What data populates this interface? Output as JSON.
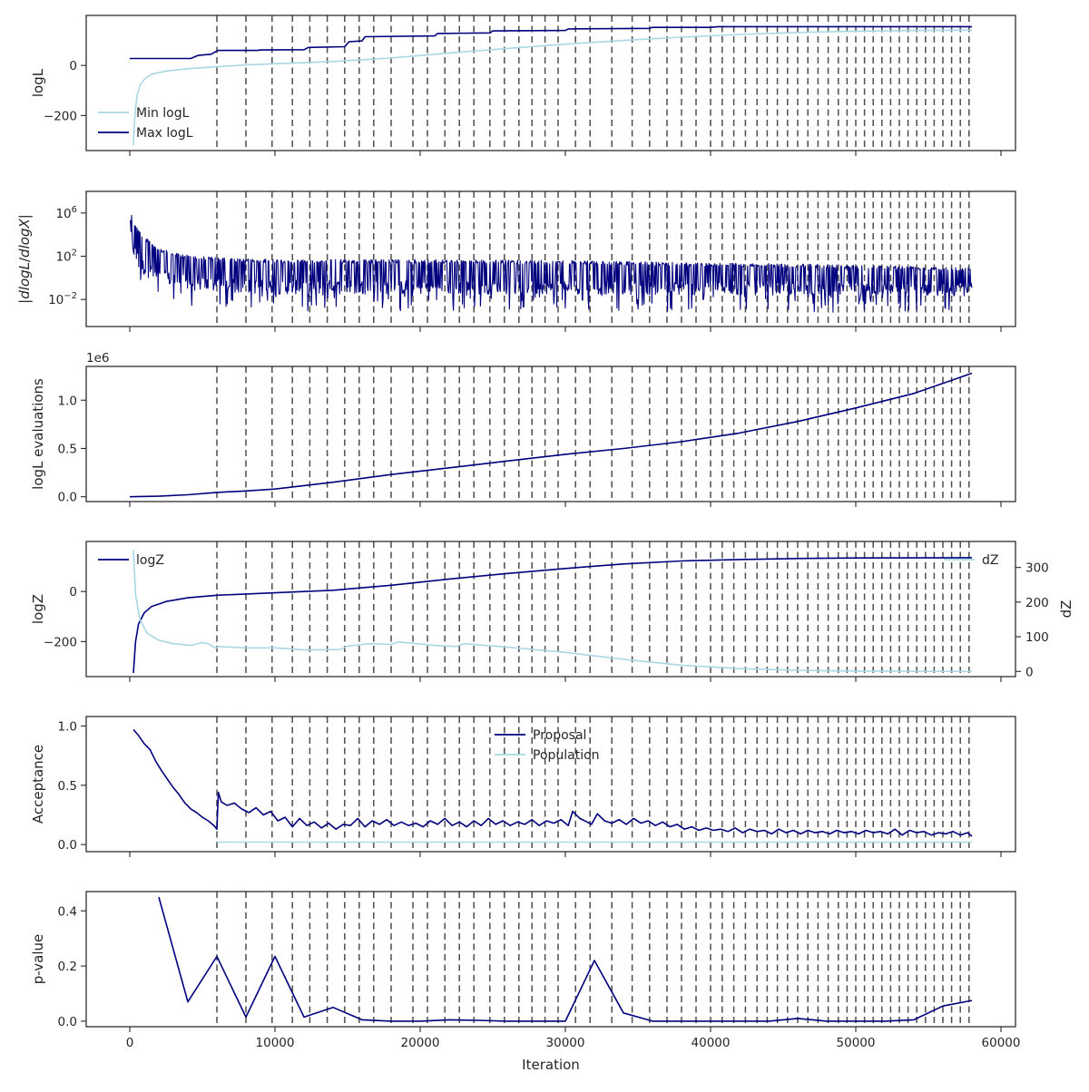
{
  "chart_data": {
    "type": "line",
    "xlabel": "Iteration",
    "xlim": [
      -3000,
      61000
    ],
    "x_ticks": [
      0,
      10000,
      20000,
      30000,
      40000,
      50000,
      60000
    ],
    "x_tick_labels": [
      "0",
      "10000",
      "20000",
      "30000",
      "40000",
      "50000",
      "60000"
    ],
    "vertical_lines": [
      6000,
      8000,
      9800,
      11200,
      12400,
      13600,
      14800,
      15800,
      16800,
      18000,
      19500,
      20500,
      21700,
      22700,
      23700,
      24800,
      25800,
      26800,
      27700,
      28600,
      29500,
      30700,
      31700,
      33200,
      34600,
      35800,
      37000,
      38000,
      39000,
      40000,
      40800,
      41600,
      42400,
      43200,
      43900,
      44600,
      45300,
      46000,
      46700,
      47400,
      48100,
      48800,
      49400,
      50000,
      50600,
      51200,
      51800,
      52400,
      53000,
      53600,
      54200,
      54800,
      55400,
      56000,
      56600,
      57200,
      57800
    ],
    "colors": {
      "dark": "#00007f",
      "light": "#a8d8e3",
      "vline": "#4d4d4d"
    },
    "panels": [
      {
        "id": "logl",
        "ylabel": "logL",
        "ylim": [
          -340,
          200
        ],
        "y_ticks": [
          -200,
          0
        ],
        "y_tick_labels": [
          "−200",
          "0"
        ],
        "legend": {
          "placement": "lower-left",
          "entries": [
            "Min logL",
            "Max logL"
          ]
        },
        "series": [
          {
            "name": "Min logL",
            "color": "light",
            "x": [
              250,
              300,
              400,
              500,
              700,
              1000,
              1500,
              2500,
              4000,
              6000,
              8000,
              10000,
              14000,
              18000,
              22000,
              26000,
              30000,
              34000,
              38000,
              42000,
              46000,
              50000,
              54000,
              58000
            ],
            "y": [
              -320,
              -250,
              -170,
              -120,
              -80,
              -55,
              -35,
              -22,
              -13,
              -5,
              2,
              7,
              16,
              30,
              50,
              68,
              85,
              100,
              113,
              124,
              132,
              137,
              140,
              141
            ]
          },
          {
            "name": "Max logL",
            "color": "dark",
            "x": [
              0,
              4200,
              4700,
              5600,
              6000,
              6100,
              8800,
              9000,
              12000,
              12300,
              14800,
              15100,
              16000,
              16200,
              21000,
              21200,
              24800,
              25000,
              30000,
              30200,
              35800,
              36000,
              40000,
              40500,
              58000
            ],
            "y": [
              28,
              28,
              40,
              45,
              58,
              60,
              60,
              62,
              63,
              72,
              75,
              95,
              98,
              115,
              118,
              128,
              130,
              138,
              140,
              146,
              148,
              152,
              152,
              155,
              155
            ]
          }
        ]
      },
      {
        "id": "dlogl",
        "ylabel": "|dlogL/dlogX|",
        "log": true,
        "ylim_log10": [
          -4.5,
          8
        ],
        "y_ticks_log10": [
          -2,
          2,
          6
        ],
        "y_tick_labels": [
          {
            "base": "10",
            "exp": "−2"
          },
          {
            "base": "10",
            "exp": "2"
          },
          {
            "base": "10",
            "exp": "6"
          }
        ],
        "envelope": {
          "x": [
            0,
            100,
            300,
            600,
            1000,
            2000,
            3000,
            5000,
            7000,
            10000,
            20000,
            30000,
            40000,
            50000,
            58000
          ],
          "upper_log10": [
            7.2,
            6.2,
            5.2,
            4.5,
            3.8,
            2.8,
            2.3,
            2.0,
            1.8,
            1.7,
            1.7,
            1.6,
            1.4,
            1.2,
            1.0
          ],
          "lower_log10": [
            5.0,
            3.2,
            1.8,
            0.8,
            0.2,
            -0.5,
            -0.8,
            -1.2,
            -1.4,
            -1.5,
            -1.5,
            -1.5,
            -1.6,
            -1.6,
            -1.4
          ]
        }
      },
      {
        "id": "evals",
        "ylabel": "logL evaluations",
        "ylim": [
          -0.05,
          1.35
        ],
        "y_ticks": [
          0,
          0.5,
          1.0
        ],
        "y_tick_labels": [
          "0.0",
          "0.5",
          "1.0"
        ],
        "offset_label": "1e6",
        "series": [
          {
            "name": "",
            "color": "dark",
            "x": [
              0,
              2000,
              4000,
              6000,
              8000,
              10000,
              14000,
              18000,
              22000,
              26000,
              30000,
              34000,
              38000,
              42000,
              46000,
              50000,
              54000,
              58000
            ],
            "y": [
              0,
              0.005,
              0.02,
              0.045,
              0.06,
              0.08,
              0.15,
              0.23,
              0.3,
              0.37,
              0.44,
              0.5,
              0.57,
              0.66,
              0.78,
              0.92,
              1.07,
              1.28
            ]
          }
        ]
      },
      {
        "id": "logz",
        "ylabel": "logZ",
        "ylim": [
          -340,
          200
        ],
        "y_ticks": [
          -200,
          0
        ],
        "y_tick_labels": [
          "−200",
          "0"
        ],
        "right_axis": {
          "ylabel": "dZ",
          "ylim": [
            -15,
            375
          ],
          "y_ticks": [
            0,
            100,
            200,
            300
          ],
          "y_tick_labels": [
            "0",
            "100",
            "200",
            "300"
          ]
        },
        "legend_left": {
          "placement": "upper-left",
          "entries": [
            "logZ"
          ]
        },
        "legend_right": {
          "placement": "upper-right",
          "entries": [
            "dZ"
          ]
        },
        "series": [
          {
            "name": "logZ",
            "color": "dark",
            "axis": "left",
            "x": [
              250,
              400,
              600,
              1000,
              1500,
              2500,
              4000,
              6000,
              10000,
              14000,
              18000,
              22000,
              26000,
              30000,
              34000,
              38000,
              42000,
              46000,
              50000,
              58000
            ],
            "y": [
              -325,
              -200,
              -130,
              -85,
              -60,
              -40,
              -25,
              -15,
              -5,
              5,
              25,
              50,
              72,
              92,
              110,
              122,
              128,
              132,
              134,
              135
            ]
          },
          {
            "name": "dZ",
            "color": "light",
            "axis": "right",
            "x": [
              250,
              400,
              700,
              1200,
              2000,
              3000,
              4200,
              5000,
              5400,
              5900,
              6000,
              6100,
              8000,
              10000,
              12000,
              14500,
              15000,
              16500,
              18000,
              18500,
              21000,
              22500,
              23000,
              26000,
              30000,
              34000,
              38000,
              42000,
              46000,
              50000,
              58000
            ],
            "y": [
              350,
              220,
              150,
              110,
              90,
              80,
              75,
              83,
              80,
              68,
              68,
              72,
              68,
              68,
              62,
              63,
              73,
              80,
              78,
              85,
              75,
              72,
              80,
              70,
              55,
              35,
              18,
              8,
              3,
              1,
              0
            ]
          }
        ]
      },
      {
        "id": "acceptance",
        "ylabel": "Acceptance",
        "ylim": [
          -0.06,
          1.08
        ],
        "y_ticks": [
          0,
          0.5,
          1.0
        ],
        "y_tick_labels": [
          "0.0",
          "0.5",
          "1.0"
        ],
        "legend": {
          "placement": "upper-center",
          "entries": [
            "Proposal",
            "Population"
          ]
        },
        "series": [
          {
            "name": "Proposal",
            "color": "dark",
            "x": [
              250,
              600,
              1000,
              1400,
              1800,
              2200,
              2600,
              3000,
              3400,
              3800,
              4200,
              4600,
              5000,
              5400,
              5800,
              6000,
              6100,
              6300,
              6700,
              7200,
              7700,
              8200,
              8700,
              9200,
              9700,
              10200,
              10700,
              11200,
              11700,
              12200,
              12700,
              13200,
              13700,
              14200,
              14700,
              15200,
              15700,
              16200,
              16700,
              17200,
              17700,
              18200,
              18700,
              19200,
              19700,
              20200,
              20700,
              21200,
              21700,
              22200,
              22700,
              23200,
              23700,
              24200,
              24700,
              25200,
              25700,
              26200,
              26700,
              27200,
              27700,
              28200,
              28700,
              29200,
              29700,
              30200,
              30500,
              31000,
              31500,
              31800,
              32200,
              32700,
              33200,
              33700,
              34200,
              34700,
              35200,
              35700,
              36200,
              36700,
              37200,
              37700,
              38200,
              38700,
              39200,
              39700,
              40200,
              40700,
              41200,
              41700,
              42200,
              42700,
              43200,
              43700,
              44200,
              44700,
              45200,
              45700,
              46200,
              46700,
              47200,
              47700,
              48200,
              48700,
              49200,
              49700,
              50200,
              50700,
              51200,
              51700,
              52200,
              52700,
              53200,
              53700,
              54200,
              54700,
              55200,
              55700,
              56200,
              56700,
              57200,
              57700,
              58000
            ],
            "y": [
              0.97,
              0.92,
              0.85,
              0.8,
              0.7,
              0.62,
              0.55,
              0.48,
              0.42,
              0.35,
              0.3,
              0.27,
              0.23,
              0.2,
              0.16,
              0.13,
              0.44,
              0.36,
              0.33,
              0.35,
              0.3,
              0.27,
              0.31,
              0.25,
              0.28,
              0.2,
              0.23,
              0.15,
              0.22,
              0.16,
              0.19,
              0.14,
              0.18,
              0.13,
              0.17,
              0.16,
              0.22,
              0.15,
              0.2,
              0.17,
              0.21,
              0.16,
              0.19,
              0.16,
              0.18,
              0.15,
              0.2,
              0.17,
              0.22,
              0.16,
              0.19,
              0.15,
              0.2,
              0.16,
              0.22,
              0.17,
              0.2,
              0.16,
              0.19,
              0.17,
              0.21,
              0.16,
              0.2,
              0.18,
              0.21,
              0.16,
              0.28,
              0.22,
              0.19,
              0.17,
              0.26,
              0.2,
              0.18,
              0.21,
              0.17,
              0.22,
              0.18,
              0.2,
              0.16,
              0.19,
              0.15,
              0.17,
              0.13,
              0.15,
              0.12,
              0.14,
              0.12,
              0.13,
              0.11,
              0.14,
              0.1,
              0.13,
              0.11,
              0.12,
              0.09,
              0.13,
              0.1,
              0.12,
              0.09,
              0.12,
              0.1,
              0.11,
              0.09,
              0.12,
              0.1,
              0.11,
              0.09,
              0.12,
              0.1,
              0.11,
              0.09,
              0.13,
              0.08,
              0.12,
              0.1,
              0.11,
              0.08,
              0.1,
              0.09,
              0.11,
              0.08,
              0.1,
              0.07
            ]
          },
          {
            "name": "Population",
            "color": "light",
            "x": [
              6000,
              10000,
              20000,
              30000,
              40000,
              50000,
              58000
            ],
            "y": [
              0.02,
              0.02,
              0.02,
              0.02,
              0.02,
              0.02,
              0.02
            ]
          }
        ]
      },
      {
        "id": "pvalue",
        "ylabel": "p-value",
        "ylim": [
          -0.02,
          0.47
        ],
        "y_ticks": [
          0,
          0.2,
          0.4
        ],
        "y_tick_labels": [
          "0.0",
          "0.2",
          "0.4"
        ],
        "series": [
          {
            "name": "",
            "color": "dark",
            "x": [
              2000,
              4000,
              6000,
              8000,
              10000,
              12000,
              14000,
              16000,
              18000,
              20000,
              22000,
              24000,
              26000,
              28000,
              30000,
              32000,
              34000,
              36000,
              38000,
              40000,
              42000,
              44000,
              46000,
              48000,
              50000,
              52000,
              54000,
              56000,
              58000
            ],
            "y": [
              0.45,
              0.07,
              0.235,
              0.015,
              0.235,
              0.015,
              0.05,
              0.005,
              0.0,
              0.0,
              0.005,
              0.003,
              0.0,
              0.0,
              0.0,
              0.22,
              0.03,
              0.0,
              0.0,
              0.0,
              0.0,
              0.0,
              0.01,
              0.0,
              0.0,
              0.0,
              0.005,
              0.055,
              0.075
            ]
          }
        ]
      }
    ]
  }
}
